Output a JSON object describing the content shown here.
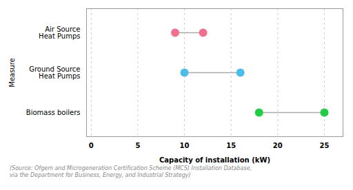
{
  "chart_data": {
    "type": "dumbbell",
    "categories": [
      "Air Source\nHeat Pumps",
      "Ground Source\nHeat Pumps",
      "Biomass boilers"
    ],
    "low": [
      9,
      10,
      18
    ],
    "high": [
      12,
      16,
      25
    ],
    "colors": [
      "#F07090",
      "#4BBDE8",
      "#22CC44"
    ],
    "color": "#aaaaaa",
    "xlabel": "Capacity of installation (kW)",
    "ylabel": "Measure",
    "xlim": [
      -0.5,
      27
    ],
    "xticks": [
      0,
      5,
      10,
      15,
      20,
      25
    ],
    "grid": "x",
    "caption": "(Source: Ofgem and Microgeneration Certification Scheme (MCS) Installation Database,\nvia the Department for Business, Energy, and Industrial Strategy)"
  }
}
